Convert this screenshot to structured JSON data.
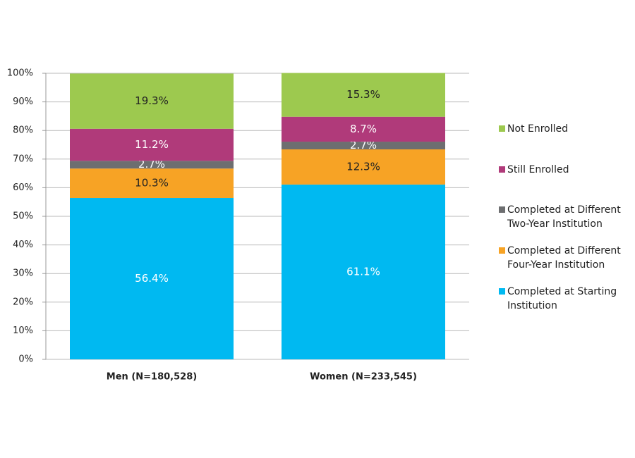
{
  "chart_data": {
    "type": "stacked-bar",
    "categories": [
      "Men (N=180,528)",
      "Women (N=233,545)"
    ],
    "series": [
      {
        "name": "Completed at Starting Institution",
        "color": "#00b9f1",
        "label_color": "#ffffff",
        "values": [
          56.4,
          61.1
        ],
        "value_labels": [
          "56.4%",
          "61.1%"
        ]
      },
      {
        "name": "Completed at Different Four-Year Institution",
        "color": "#f7a325",
        "label_color": "#222222",
        "values": [
          10.3,
          12.3
        ],
        "value_labels": [
          "10.3%",
          "12.3%"
        ]
      },
      {
        "name": "Completed at Different Two-Year Institution",
        "color": "#6d6e70",
        "label_color": "#ffffff",
        "values": [
          2.7,
          2.7
        ],
        "value_labels": [
          "2.7%",
          "2.7%"
        ]
      },
      {
        "name": "Still Enrolled",
        "color": "#b03a7a",
        "label_color": "#ffffff",
        "values": [
          11.2,
          8.7
        ],
        "value_labels": [
          "11.2%",
          "8.7%"
        ]
      },
      {
        "name": "Not Enrolled",
        "color": "#9dc94f",
        "label_color": "#222222",
        "values": [
          19.3,
          15.3
        ],
        "value_labels": [
          "19.3%",
          "15.3%"
        ]
      }
    ],
    "ylim": [
      0,
      100
    ],
    "yticks": [
      {
        "value": 0,
        "label": "0%"
      },
      {
        "value": 10,
        "label": "10%"
      },
      {
        "value": 20,
        "label": "20%"
      },
      {
        "value": 30,
        "label": "30%"
      },
      {
        "value": 40,
        "label": "40%"
      },
      {
        "value": 50,
        "label": "50%"
      },
      {
        "value": 60,
        "label": "60%"
      },
      {
        "value": 70,
        "label": "70%"
      },
      {
        "value": 80,
        "label": "80%"
      },
      {
        "value": 90,
        "label": "90%"
      },
      {
        "value": 100,
        "label": "100%"
      }
    ],
    "grid": true,
    "legend": "right"
  }
}
